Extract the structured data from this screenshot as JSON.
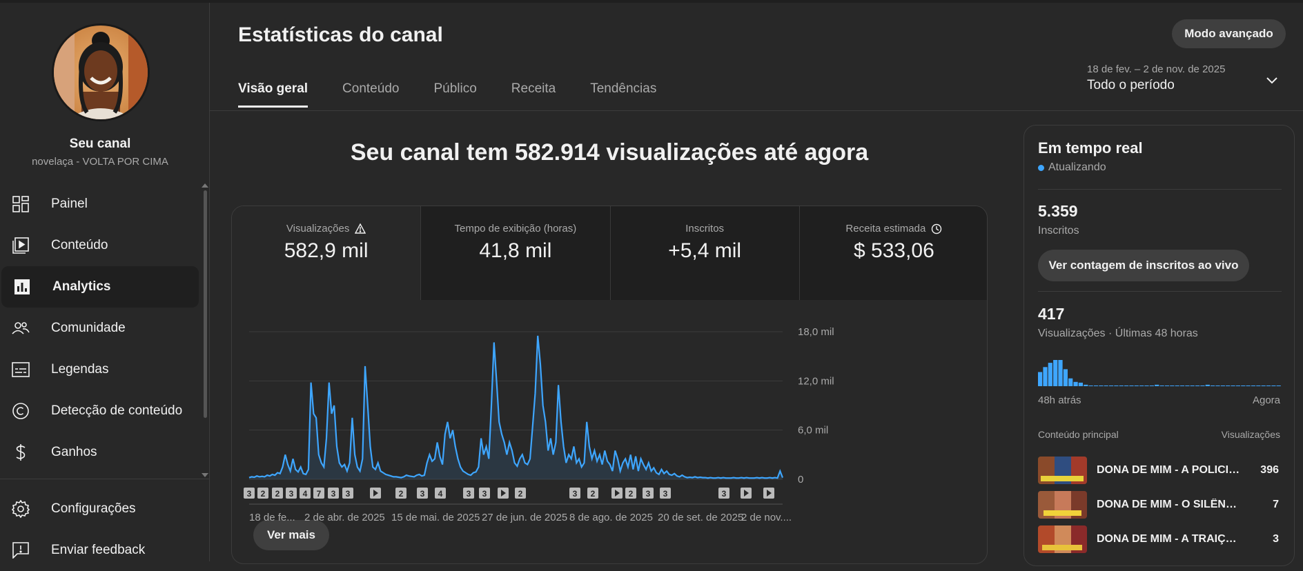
{
  "sidebar": {
    "channel_name": "Seu canal",
    "channel_subtitle": "novelaça - VOLTA POR CIMA",
    "items": [
      {
        "label": "Painel",
        "icon": "dashboard-icon"
      },
      {
        "label": "Conteúdo",
        "icon": "content-icon"
      },
      {
        "label": "Analytics",
        "icon": "analytics-icon",
        "active": true
      },
      {
        "label": "Comunidade",
        "icon": "community-icon"
      },
      {
        "label": "Legendas",
        "icon": "subtitles-icon"
      },
      {
        "label": "Detecção de conteúdo",
        "icon": "copyright-icon"
      },
      {
        "label": "Ganhos",
        "icon": "earn-icon"
      }
    ],
    "bottom_items": [
      {
        "label": "Configurações",
        "icon": "settings-icon"
      },
      {
        "label": "Enviar feedback",
        "icon": "feedback-icon"
      }
    ]
  },
  "header": {
    "title": "Estatísticas do canal",
    "advanced_mode": "Modo avançado",
    "tabs": [
      "Visão geral",
      "Conteúdo",
      "Público",
      "Receita",
      "Tendências"
    ],
    "date_range": "18 de fev. – 2 de nov. de 2025",
    "period": "Todo o período"
  },
  "main": {
    "headline": "Seu canal tem 582.914 visualizações até agora",
    "metrics": [
      {
        "label": "Visualizações",
        "value": "582,9 mil",
        "icon": "warning-icon"
      },
      {
        "label": "Tempo de exibição (horas)",
        "value": "41,8 mil"
      },
      {
        "label": "Inscritos",
        "value": "+5,4 mil"
      },
      {
        "label": "Receita estimada",
        "value": "$ 533,06",
        "icon": "clock-icon"
      }
    ],
    "see_more": "Ver mais"
  },
  "chart_data": {
    "type": "area",
    "title": "",
    "xlabel": "",
    "ylabel": "",
    "ylim": [
      0,
      18000
    ],
    "yticks": [
      "18,0 mil",
      "12,0 mil",
      "6,0 mil",
      "0"
    ],
    "xticks": [
      "18 de fe...",
      "2 de abr. de 2025",
      "15 de mai. de 2025",
      "27 de jun. de 2025",
      "8 de ago. de 2025",
      "20 de set. de 2025",
      "2 de nov...."
    ],
    "color": "#3ea6ff",
    "grid": true,
    "values": [
      200,
      300,
      250,
      400,
      300,
      350,
      300,
      500,
      400,
      600,
      500,
      800,
      700,
      1500,
      3000,
      1800,
      1000,
      2500,
      1200,
      900,
      1500,
      700,
      600,
      1200,
      11800,
      8000,
      7500,
      3000,
      2000,
      1500,
      5000,
      11800,
      8000,
      9000,
      4000,
      2000,
      1500,
      1800,
      1000,
      2000,
      7500,
      3000,
      1500,
      1000,
      2500,
      13800,
      9000,
      4000,
      1500,
      1200,
      2000,
      1000,
      800,
      600,
      500,
      400,
      300,
      300,
      250,
      200,
      300,
      500,
      400,
      350,
      300,
      500,
      600,
      400,
      500,
      2000,
      3000,
      2200,
      2500,
      4500,
      2800,
      1800,
      5500,
      7000,
      5000,
      6000,
      4000,
      2500,
      1500,
      1000,
      800,
      600,
      500,
      800,
      900,
      1500,
      5000,
      3000,
      4000,
      2500,
      9000,
      16700,
      12000,
      7000,
      5500,
      4500,
      3000,
      4500,
      3500,
      2000,
      1600,
      2500,
      3000,
      2000,
      1800,
      2500,
      6500,
      10500,
      17500,
      14000,
      9000,
      7000,
      3500,
      5000,
      3000,
      4500,
      11500,
      7000,
      4000,
      2000,
      3000,
      2500,
      4000,
      2000,
      2500,
      1500,
      2000,
      7000,
      4000,
      2500,
      3500,
      2200,
      3000,
      1800,
      3500,
      2200,
      1800,
      1000,
      3500,
      2500,
      1000,
      2000,
      2500,
      1500,
      3000,
      1200,
      2800,
      1000,
      2500,
      1800,
      1200,
      2000,
      1000,
      1400,
      800,
      600,
      1200,
      700,
      1000,
      600,
      500,
      700,
      400,
      300,
      500,
      300,
      200,
      250,
      200,
      300,
      200,
      250,
      200,
      200,
      150,
      200,
      150,
      150,
      200,
      150,
      200,
      150,
      150,
      150,
      200,
      150,
      150,
      200,
      150,
      200,
      150,
      150,
      150,
      200,
      150,
      200,
      150,
      150,
      200,
      150,
      200,
      150,
      1000,
      200
    ],
    "annotations": [
      "3",
      "2",
      "2",
      "3",
      "4",
      "7",
      "3",
      "3",
      "play",
      "2",
      "3",
      "4",
      "3",
      "3",
      "play",
      "2",
      "3",
      "2",
      "play",
      "2",
      "3",
      "3",
      "3",
      "play",
      "play"
    ]
  },
  "realtime": {
    "title": "Em tempo real",
    "status": "Atualizando",
    "subscribers_value": "5.359",
    "subscribers_label": "Inscritos",
    "live_button": "Ver contagem de inscritos ao vivo",
    "views_value": "417",
    "views_label": "Visualizações · Últimas 48 horas",
    "bars": [
      20,
      27,
      33,
      37,
      37,
      24,
      11,
      6,
      5,
      2,
      1,
      1,
      1,
      1,
      1,
      1,
      1,
      1,
      1,
      1,
      1,
      1,
      1,
      2,
      1,
      1,
      1,
      1,
      1,
      1,
      1,
      1,
      1,
      2,
      1,
      1,
      1,
      1,
      1,
      1,
      1,
      1,
      1,
      1,
      1,
      1,
      1,
      1
    ],
    "axis_start": "48h atrás",
    "axis_end": "Agora",
    "content_header": "Conteúdo principal",
    "views_header": "Visualizações",
    "top_content": [
      {
        "title": "DONA DE MIM - A POLICIA ...",
        "views": "396"
      },
      {
        "title": "DONA DE MIM - O SILÊNCIO ...",
        "views": "7"
      },
      {
        "title": "DONA DE MIM - A TRAIÇÃO C...",
        "views": "3"
      }
    ]
  }
}
